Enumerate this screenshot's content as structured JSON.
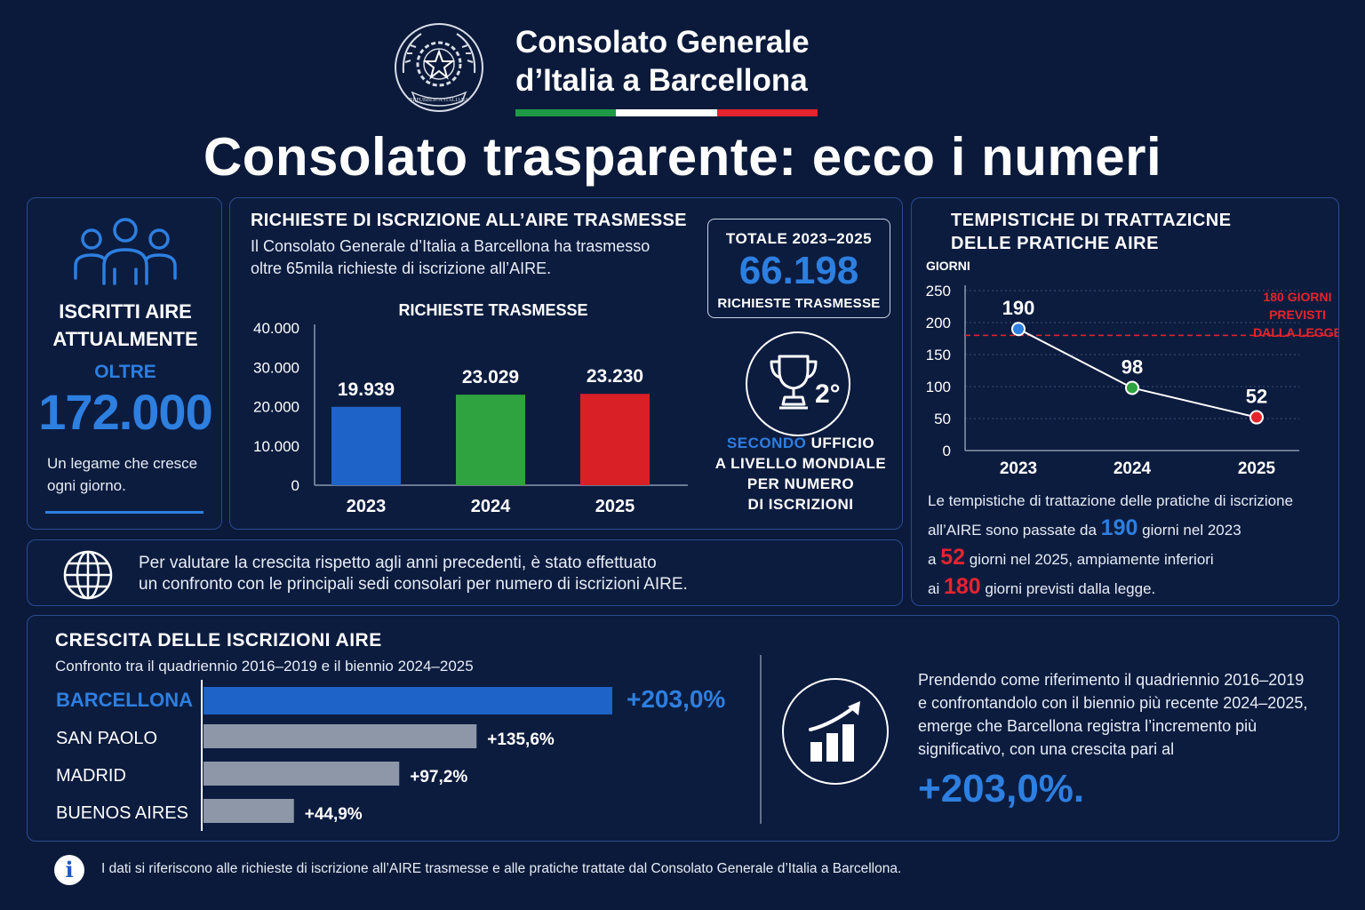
{
  "header": {
    "org_line1": "Consolato Generale",
    "org_line2": "d’Italia a Barcellona",
    "emblem_text": "REPUBBLICA ITALIANA",
    "flag_colors": [
      "#1e9a44",
      "#ffffff",
      "#e5242e"
    ],
    "main_title": "Consolato trasparente: ecco i numeri"
  },
  "iscritti": {
    "icon": "people-icon",
    "label_line1": "ISCRITTI AIRE",
    "label_line2": "ATTUALMENTE",
    "oltre": "OLTRE",
    "value": "172.000",
    "tagline_line1": "Un legame che cresce",
    "tagline_line2": "ogni giorno."
  },
  "richieste": {
    "title": "RICHIESTE DI ISCRIZIONE ALL’AIRE TRASMESSE",
    "desc_line1": "Il Consolato Generale d’Italia a Barcellona ha trasmesso",
    "desc_line2": "oltre 65mila richieste di iscrizione all’AIRE.",
    "totale_label": "TOTALE 2023–2025",
    "totale_value": "66.198",
    "totale_sub": "RICHIESTE TRASMESSE",
    "trophy_icon": "trophy-icon",
    "rank": "2°",
    "secondo_word": "SECONDO",
    "secondo_line1_rest": " UFFICIO",
    "secondo_line2": "A LIVELLO MONDIALE",
    "secondo_line3": "PER NUMERO",
    "secondo_line4": "DI ISCRIZIONI"
  },
  "tempi": {
    "title_line1": "TEMPISTICHE DI TRATTAZICNE",
    "title_line2": "DELLE PRATICHE AIRE",
    "desc_line1": "Le tempistiche di trattazione delle pratiche di iscrizione",
    "desc_line2_a": "all’AIRE sono passate da ",
    "desc_190": "190",
    "desc_line2_b": " giorni nel 2023",
    "desc_line3_a": "a ",
    "desc_52": "52",
    "desc_line3_b": " giorni nel 2025, ampiamente inferiori",
    "desc_line4_a": "ai ",
    "desc_180": "180",
    "desc_line4_b": " giorni previsti dalla legge."
  },
  "confronto": {
    "icon": "globe-icon",
    "line1": "Per valutare la crescita rispetto agli anni precedenti, è stato effettuato",
    "line2": "un confronto con le principali sedi consolari per numero di iscrizioni AIRE."
  },
  "crescita": {
    "title": "CRESCITA DELLE ISCRIZIONI AIRE",
    "subtitle": "Confronto tra il quadriennio 2016–2019 e il biennio 2024–2025",
    "icon": "growth-chart-icon",
    "desc_line1": "Prendendo come riferimento il quadriennio 2016–2019",
    "desc_line2": "e confrontandolo con il biennio più recente 2024–2025,",
    "desc_line3": "emerge che Barcellona registra l’incremento più",
    "desc_line4": "significativo, con una crescita pari al",
    "big_value": "+203,0%."
  },
  "footer": {
    "info_icon": "i",
    "text": "I dati si riferiscono alle richieste di iscrizione all’AIRE trasmesse e alle pratiche trattate dal Consolato Generale d’Italia a Barcellona."
  },
  "chart_data": [
    {
      "type": "bar",
      "title": "RICHIESTE TRASMESSE",
      "categories": [
        "2023",
        "2024",
        "2025"
      ],
      "values": [
        19939,
        23029,
        23230
      ],
      "value_labels": [
        "19.939",
        "23.029",
        "23.230"
      ],
      "colors": [
        "#1e63c8",
        "#2fa33f",
        "#d92027"
      ],
      "yticks": [
        0,
        10000,
        20000,
        30000,
        40000
      ],
      "ytick_labels": [
        "0",
        "10.000",
        "20.000",
        "30.000",
        "40.000"
      ],
      "ylim": [
        0,
        40000
      ]
    },
    {
      "type": "line",
      "ylabel": "GIORNI",
      "x": [
        "2023",
        "2024",
        "2025"
      ],
      "values": [
        190,
        98,
        52
      ],
      "point_colors": [
        "#2d7fe0",
        "#2fa33f",
        "#e5242e"
      ],
      "yticks": [
        0,
        50,
        100,
        150,
        200,
        250
      ],
      "ylim": [
        0,
        250
      ],
      "reference_line": {
        "value": 180,
        "label_lines": [
          "180 GIORNI",
          "PREVISTI",
          "DALLA LEGGE"
        ],
        "color": "#e5242e"
      }
    },
    {
      "type": "bar",
      "orientation": "horizontal",
      "categories": [
        "BARCELLONA",
        "SAN PAOLO",
        "MADRID",
        "BUENOS AIRES"
      ],
      "values": [
        203.0,
        135.6,
        97.2,
        44.9
      ],
      "value_labels": [
        "+203,0%",
        "+135,6%",
        "+97,2%",
        "+44,9%"
      ],
      "colors": [
        "#1e63c8",
        "#8e97a8",
        "#8e97a8",
        "#8e97a8"
      ],
      "highlight": "BARCELLONA"
    }
  ]
}
